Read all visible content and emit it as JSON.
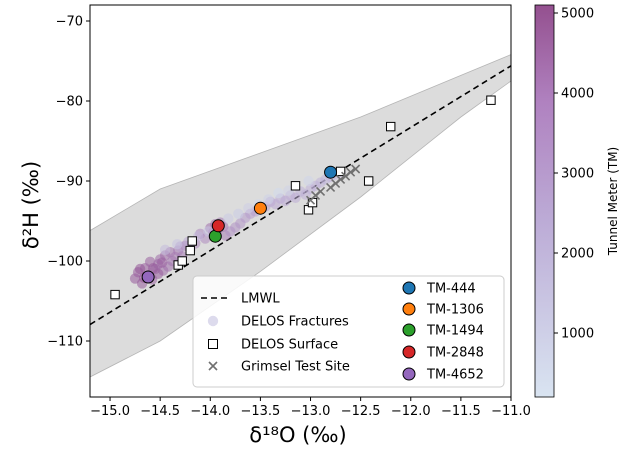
{
  "chart_data": {
    "type": "scatter",
    "xlabel": "δ¹⁸O (‰)",
    "ylabel": "δ²H (‰)",
    "xlim": [
      -15.2,
      -11.0
    ],
    "ylim": [
      -117,
      -68
    ],
    "xticks": [
      -15.0,
      -14.5,
      -14.0,
      -13.5,
      -13.0,
      -12.5,
      -12.0,
      -11.5,
      -11.0
    ],
    "xtick_labels": [
      "−15.0",
      "−14.5",
      "−14.0",
      "−13.5",
      "−13.0",
      "−12.5",
      "−12.0",
      "−11.5",
      "−11.0"
    ],
    "yticks": [
      -110,
      -100,
      -90,
      -80,
      -70
    ],
    "ytick_labels": [
      "−110",
      "−100",
      "−90",
      "−80",
      "−70"
    ],
    "colorbar": {
      "label": "Tunnel Meter (TM)",
      "range": [
        200,
        5100
      ],
      "ticks": [
        1000,
        2000,
        3000,
        4000,
        5000
      ],
      "tick_labels": [
        "1000",
        "2000",
        "3000",
        "4000",
        "5000"
      ],
      "color_low": "#d5e1ef",
      "color_mid": "#bba8d4",
      "color_high": "#8f4a8f"
    },
    "lmwl": {
      "name": "LMWL",
      "slope": 7.7,
      "intercept": 9.1,
      "band": {
        "upper": [
          [
            -15.2,
            -96.2
          ],
          [
            -14.5,
            -91.0
          ],
          [
            -13.5,
            -86.5
          ],
          [
            -12.5,
            -82.0
          ],
          [
            -11.5,
            -76.8
          ],
          [
            -11.0,
            -74.2
          ]
        ],
        "lower": [
          [
            -15.2,
            -114.5
          ],
          [
            -14.5,
            -110.0
          ],
          [
            -13.5,
            -101.3
          ],
          [
            -12.5,
            -92.0
          ],
          [
            -11.5,
            -82.0
          ],
          [
            -11.0,
            -77.5
          ]
        ]
      }
    },
    "series": [
      {
        "name": "DELOS Fractures",
        "marker": "circle",
        "points": [
          [
            -14.75,
            -102.2,
            4700
          ],
          [
            -14.72,
            -101.4,
            4650
          ],
          [
            -14.68,
            -102.8,
            4600
          ],
          [
            -14.65,
            -100.9,
            4550
          ],
          [
            -14.62,
            -101.9,
            4500
          ],
          [
            -14.6,
            -100.1,
            4450
          ],
          [
            -14.58,
            -102.3,
            4400
          ],
          [
            -14.55,
            -101.0,
            4350
          ],
          [
            -14.52,
            -100.4,
            4300
          ],
          [
            -14.5,
            -99.8,
            4250
          ],
          [
            -14.47,
            -101.2,
            4200
          ],
          [
            -14.45,
            -99.3,
            4150
          ],
          [
            -14.42,
            -100.7,
            4100
          ],
          [
            -14.4,
            -98.9,
            4050
          ],
          [
            -14.38,
            -100.0,
            4000
          ],
          [
            -14.7,
            -101.0,
            4800
          ],
          [
            -14.66,
            -102.1,
            4900
          ],
          [
            -14.57,
            -100.9,
            4700
          ],
          [
            -14.52,
            -101.6,
            4600
          ],
          [
            -14.48,
            -100.2,
            4500
          ],
          [
            -14.35,
            -99.5,
            3900
          ],
          [
            -14.32,
            -98.7,
            3850
          ],
          [
            -14.28,
            -99.4,
            3800
          ],
          [
            -14.25,
            -98.1,
            3700
          ],
          [
            -14.2,
            -98.6,
            3600
          ],
          [
            -14.15,
            -97.8,
            3500
          ],
          [
            -14.1,
            -96.6,
            3450
          ],
          [
            -14.05,
            -97.2,
            3400
          ],
          [
            -14.0,
            -95.9,
            4100
          ],
          [
            -13.97,
            -96.4,
            4200
          ],
          [
            -13.95,
            -95.4,
            4300
          ],
          [
            -13.92,
            -96.0,
            3900
          ],
          [
            -13.9,
            -95.2,
            3850
          ],
          [
            -13.87,
            -95.7,
            4000
          ],
          [
            -13.85,
            -96.8,
            3700
          ],
          [
            -13.8,
            -96.3,
            3300
          ],
          [
            -13.75,
            -95.8,
            3200
          ],
          [
            -13.7,
            -95.3,
            3100
          ],
          [
            -13.65,
            -94.6,
            3000
          ],
          [
            -13.6,
            -94.1,
            2950
          ],
          [
            -13.55,
            -93.8,
            2900
          ],
          [
            -13.45,
            -93.2,
            2800
          ],
          [
            -13.4,
            -92.6,
            2700
          ],
          [
            -13.35,
            -92.9,
            2650
          ],
          [
            -13.3,
            -92.2,
            2600
          ],
          [
            -13.25,
            -92.5,
            2550
          ],
          [
            -13.2,
            -91.8,
            2500
          ],
          [
            -13.15,
            -92.1,
            2450
          ],
          [
            -13.1,
            -91.3,
            2400
          ],
          [
            -13.05,
            -91.7,
            2350
          ],
          [
            -13.0,
            -91.0,
            2300
          ],
          [
            -12.95,
            -90.6,
            2250
          ],
          [
            -12.9,
            -90.2,
            2200
          ],
          [
            -12.85,
            -89.8,
            2150
          ],
          [
            -12.8,
            -89.5,
            2100
          ],
          [
            -12.75,
            -89.2,
            2050
          ],
          [
            -12.7,
            -88.9,
            2000
          ],
          [
            -14.3,
            -98.2,
            3000
          ],
          [
            -14.22,
            -97.6,
            2500
          ],
          [
            -14.12,
            -96.9,
            2000
          ],
          [
            -14.02,
            -96.3,
            1500
          ],
          [
            -13.82,
            -94.7,
            1200
          ],
          [
            -13.62,
            -93.4,
            1000
          ],
          [
            -13.42,
            -92.3,
            900
          ],
          [
            -13.22,
            -91.2,
            800
          ],
          [
            -13.02,
            -90.0,
            700
          ],
          [
            -14.45,
            -98.6,
            1800
          ],
          [
            -14.33,
            -97.9,
            1400
          ],
          [
            -13.72,
            -94.1,
            1100
          ],
          [
            -13.52,
            -92.9,
            600
          ],
          [
            -13.32,
            -91.5,
            500
          ]
        ]
      },
      {
        "name": "DELOS Surface",
        "marker": "square",
        "points": [
          [
            -14.95,
            -104.2
          ],
          [
            -14.32,
            -100.5
          ],
          [
            -14.28,
            -100.0
          ],
          [
            -14.2,
            -98.7
          ],
          [
            -14.18,
            -97.5
          ],
          [
            -13.15,
            -90.6
          ],
          [
            -13.02,
            -93.6
          ],
          [
            -12.98,
            -92.7
          ],
          [
            -12.7,
            -88.8
          ],
          [
            -12.42,
            -90.0
          ],
          [
            -12.2,
            -83.2
          ],
          [
            -11.2,
            -79.9
          ]
        ]
      },
      {
        "name": "Grimsel Test Site",
        "marker": "x",
        "points": [
          [
            -13.0,
            -92.4
          ],
          [
            -12.95,
            -91.8
          ],
          [
            -12.9,
            -91.3
          ],
          [
            -12.8,
            -90.8
          ],
          [
            -12.75,
            -90.3
          ],
          [
            -12.7,
            -89.8
          ],
          [
            -12.65,
            -89.4
          ],
          [
            -12.6,
            -88.9
          ],
          [
            -12.55,
            -88.5
          ]
        ]
      }
    ],
    "highlights": [
      {
        "name": "TM-444",
        "x": -12.8,
        "y": -88.9,
        "color": "#1f77b4"
      },
      {
        "name": "TM-1306",
        "x": -13.5,
        "y": -93.4,
        "color": "#ff7f0e"
      },
      {
        "name": "TM-1494",
        "x": -13.95,
        "y": -96.9,
        "color": "#2ca02c"
      },
      {
        "name": "TM-2848",
        "x": -13.92,
        "y": -95.6,
        "color": "#d62728"
      },
      {
        "name": "TM-4652",
        "x": -14.62,
        "y": -102.0,
        "color": "#9467bd"
      }
    ],
    "legend": {
      "placement": "lower-right",
      "left_column": [
        "LMWL",
        "DELOS Fractures",
        "DELOS Surface",
        "Grimsel Test Site"
      ],
      "right_column": [
        "TM-444",
        "TM-1306",
        "TM-1494",
        "TM-2848",
        "TM-4652"
      ]
    }
  }
}
